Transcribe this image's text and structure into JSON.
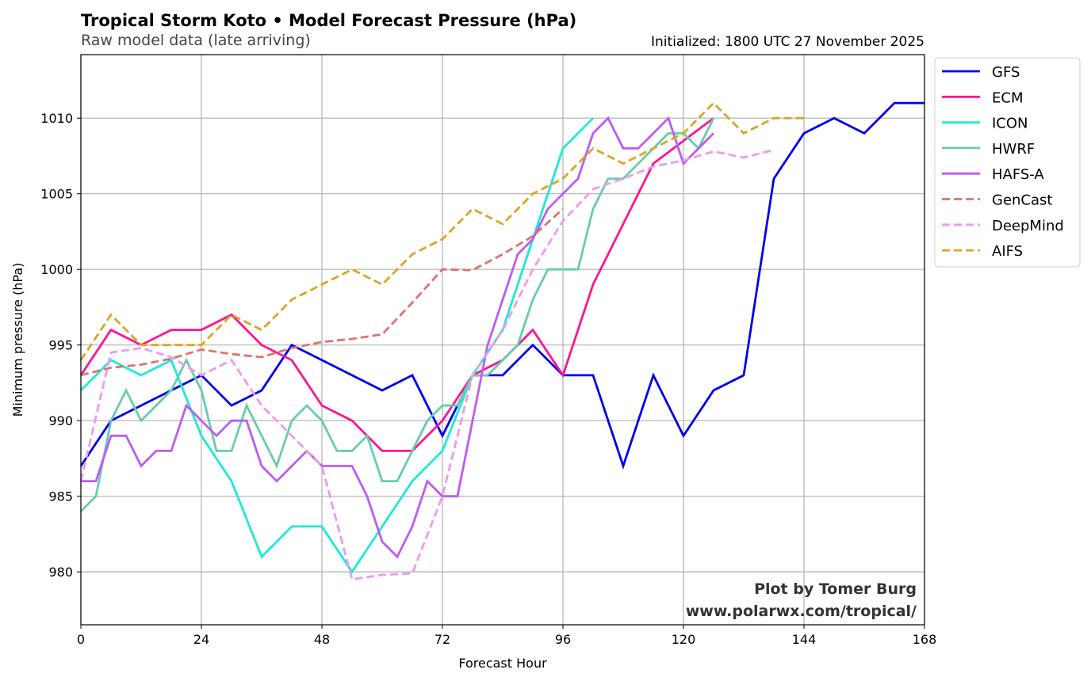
{
  "chart_data": {
    "type": "line",
    "title": "Tropical Storm Koto • Model Forecast Pressure (hPa)",
    "subtitle": "Raw model data (late arriving)",
    "init_text": "Initialized: 1800 UTC 27 November 2025",
    "xlabel": "Forecast Hour",
    "ylabel": "Minimum pressure (hPa)",
    "xlim": [
      0,
      168
    ],
    "ylim": [
      976.5,
      1014.2
    ],
    "xticks": [
      0,
      24,
      48,
      72,
      96,
      120,
      144,
      168
    ],
    "yticks": [
      980,
      985,
      990,
      995,
      1000,
      1005,
      1010
    ],
    "grid": true,
    "legend_position": "outside-top-right",
    "credit_line1": "Plot by Tomer Burg",
    "credit_line2": "www.polarwx.com/tropical/",
    "series": [
      {
        "name": "GFS",
        "color": "#0000ee",
        "dash": false,
        "x": [
          0,
          6,
          12,
          18,
          24,
          30,
          36,
          42,
          48,
          54,
          60,
          66,
          72,
          78,
          84,
          90,
          96,
          102,
          108,
          114,
          120,
          126,
          132,
          138,
          144,
          150,
          156,
          162,
          168
        ],
        "y": [
          987,
          990,
          991,
          992,
          993,
          991,
          992,
          995,
          994,
          993,
          992,
          993,
          989,
          993,
          993,
          995,
          993,
          993,
          987,
          993,
          989,
          992,
          993,
          1006,
          1009,
          1010,
          1009,
          1011,
          1011
        ]
      },
      {
        "name": "ECM",
        "color": "#ff1493",
        "dash": false,
        "x": [
          0,
          6,
          12,
          18,
          24,
          30,
          36,
          42,
          48,
          54,
          60,
          66,
          72,
          78,
          84,
          90,
          96,
          102,
          108,
          114,
          120,
          126
        ],
        "y": [
          993,
          996,
          995,
          996,
          996,
          997,
          995,
          994,
          991,
          990,
          988,
          988,
          990,
          993,
          994,
          996,
          993,
          999,
          1003,
          1007,
          1008.5,
          1010
        ]
      },
      {
        "name": "ICON",
        "color": "#1de9d9",
        "dash": false,
        "x": [
          0,
          6,
          12,
          18,
          24,
          30,
          36,
          42,
          48,
          54,
          60,
          66,
          72,
          78,
          84,
          90,
          96,
          102
        ],
        "y": [
          992,
          994,
          993,
          994,
          989,
          986,
          981,
          983,
          983,
          980,
          983,
          986,
          988,
          993,
          996,
          1002,
          1008,
          1010
        ]
      },
      {
        "name": "HWRF",
        "color": "#66cdaa",
        "dash": false,
        "x": [
          0,
          3,
          6,
          9,
          12,
          15,
          18,
          21,
          24,
          27,
          30,
          33,
          36,
          39,
          42,
          45,
          48,
          51,
          54,
          57,
          60,
          63,
          66,
          69,
          72,
          75,
          78,
          81,
          84,
          87,
          90,
          93,
          96,
          99,
          102,
          105,
          108,
          111,
          114,
          117,
          120,
          123,
          126
        ],
        "y": [
          984,
          985,
          990,
          992,
          990,
          991,
          992,
          994,
          992,
          988,
          988,
          991,
          989,
          987,
          990,
          991,
          990,
          988,
          988,
          989,
          986,
          986,
          988,
          990,
          991,
          991,
          993,
          993,
          994,
          995,
          998,
          1000,
          1000,
          1000,
          1004,
          1006,
          1006,
          1007,
          1008,
          1009,
          1009,
          1008,
          1010
        ]
      },
      {
        "name": "HAFS-A",
        "color": "#c05af5",
        "dash": false,
        "x": [
          0,
          3,
          6,
          9,
          12,
          15,
          18,
          21,
          24,
          27,
          30,
          33,
          36,
          39,
          42,
          45,
          48,
          51,
          54,
          57,
          60,
          63,
          66,
          69,
          72,
          75,
          78,
          81,
          84,
          87,
          90,
          93,
          96,
          99,
          102,
          105,
          108,
          111,
          114,
          117,
          120,
          123,
          126
        ],
        "y": [
          986,
          986,
          989,
          989,
          987,
          988,
          988,
          991,
          990,
          989,
          990,
          990,
          987,
          986,
          987,
          988,
          987,
          987,
          987,
          985,
          982,
          981,
          983,
          986,
          985,
          985,
          990,
          995,
          998,
          1001,
          1002,
          1004,
          1005,
          1006,
          1009,
          1010,
          1008,
          1008,
          1009,
          1010,
          1007,
          1008,
          1009
        ]
      },
      {
        "name": "GenCast",
        "color": "#e07070",
        "dash": true,
        "x": [
          0,
          6,
          12,
          18,
          24,
          30,
          36,
          42,
          48,
          54,
          60,
          66,
          72,
          78,
          84,
          90,
          96
        ],
        "y": [
          993,
          993.5,
          993.7,
          994.1,
          994.7,
          994.4,
          994.2,
          994.8,
          995.2,
          995.4,
          995.7,
          997.8,
          1000,
          999.95,
          1001,
          1002.2,
          1004
        ]
      },
      {
        "name": "DeepMind",
        "color": "#ee99ee",
        "dash": true,
        "x": [
          0,
          6,
          12,
          18,
          24,
          30,
          36,
          42,
          48,
          54,
          60,
          66,
          72,
          78,
          84,
          90,
          96,
          102,
          108,
          114,
          120,
          126,
          132,
          138
        ],
        "y": [
          986,
          994.5,
          994.8,
          994.2,
          993,
          994,
          991,
          989,
          987,
          979.5,
          979.8,
          979.9,
          985,
          993,
          996,
          1000,
          1003.2,
          1005.3,
          1006,
          1006.8,
          1007.2,
          1007.8,
          1007.4,
          1007.9
        ]
      },
      {
        "name": "AIFS",
        "color": "#daa520",
        "dash": true,
        "x": [
          0,
          6,
          12,
          18,
          24,
          30,
          36,
          42,
          48,
          54,
          60,
          66,
          72,
          78,
          84,
          90,
          96,
          102,
          108,
          114,
          120,
          126,
          132,
          138,
          144
        ],
        "y": [
          994,
          997,
          995,
          995,
          995,
          997,
          996,
          998,
          999,
          1000,
          999,
          1001,
          1002,
          1004,
          1003,
          1005,
          1006,
          1008,
          1007,
          1008,
          1009,
          1011,
          1009,
          1010,
          1010
        ]
      }
    ]
  }
}
